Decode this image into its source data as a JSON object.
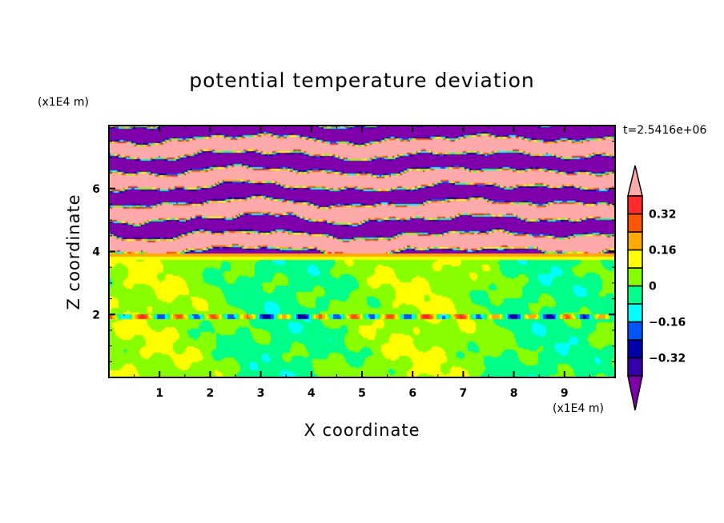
{
  "chart_data": {
    "type": "heatmap",
    "title": "potential temperature deviation",
    "xlabel": "X coordinate",
    "ylabel": "Z coordinate",
    "x_unit_label": "(x1E4 m)",
    "y_unit_label": "(x1E4 m)",
    "time_label": "t=2.5416e+06",
    "xlim": [
      0,
      10
    ],
    "ylim": [
      0,
      8
    ],
    "xticks": [
      1,
      2,
      3,
      4,
      5,
      6,
      7,
      8,
      9
    ],
    "yticks": [
      2,
      4,
      6
    ],
    "colorbar": {
      "levels": [
        -0.4,
        -0.32,
        -0.24,
        -0.16,
        -0.08,
        0,
        0.08,
        0.16,
        0.24,
        0.32,
        0.4
      ],
      "tick_labels": [
        {
          "value": 0.32,
          "label": "0.32"
        },
        {
          "value": 0.16,
          "label": "0.16"
        },
        {
          "value": 0,
          "label": "0"
        },
        {
          "value": -0.16,
          "label": "−0.16"
        },
        {
          "value": -0.32,
          "label": "−0.32"
        }
      ],
      "colors_low_to_high": [
        "#7f00aa",
        "#3300aa",
        "#0000aa",
        "#0055ff",
        "#00ffff",
        "#00ff88",
        "#88ff00",
        "#ffff00",
        "#ffaa00",
        "#ff5500",
        "#ff2a2a",
        "#ffaaaa"
      ],
      "extend": "both"
    },
    "description_regions": [
      {
        "z_range": [
          4,
          8
        ],
        "pattern": "alternating layers above 0.4 and below -0.4"
      },
      {
        "z_range": [
          3.8,
          4
        ],
        "pattern": "0.08 to 0.24 band"
      },
      {
        "z_range": [
          0,
          3.8
        ],
        "pattern": "values between -0.08 and 0.08"
      }
    ]
  }
}
